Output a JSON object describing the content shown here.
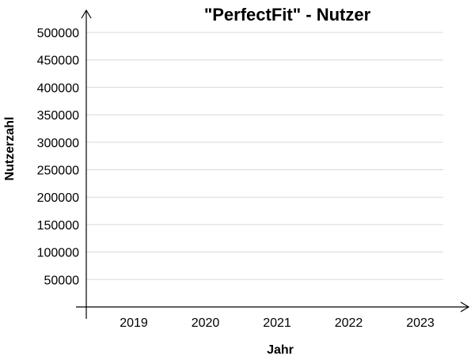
{
  "chart_data": {
    "type": "line",
    "title": "\"PerfectFit\" - Nutzer",
    "xlabel": "Jahr",
    "ylabel": "Nutzerzahl",
    "categories": [
      "2019",
      "2020",
      "2021",
      "2022",
      "2023"
    ],
    "x_tick_labels": [
      "2019",
      "2020",
      "2021",
      "2022",
      "2023"
    ],
    "y_ticks": [
      50000,
      100000,
      150000,
      200000,
      250000,
      300000,
      350000,
      400000,
      450000,
      500000
    ],
    "y_tick_labels": [
      "50000",
      "100000",
      "150000",
      "200000",
      "250000",
      "300000",
      "350000",
      "400000",
      "450000",
      "500000"
    ],
    "ylim": [
      0,
      500000
    ],
    "grid": true,
    "series": []
  },
  "colors": {
    "axis": "#000000",
    "grid": "#d9d9d9",
    "text": "#000000"
  }
}
